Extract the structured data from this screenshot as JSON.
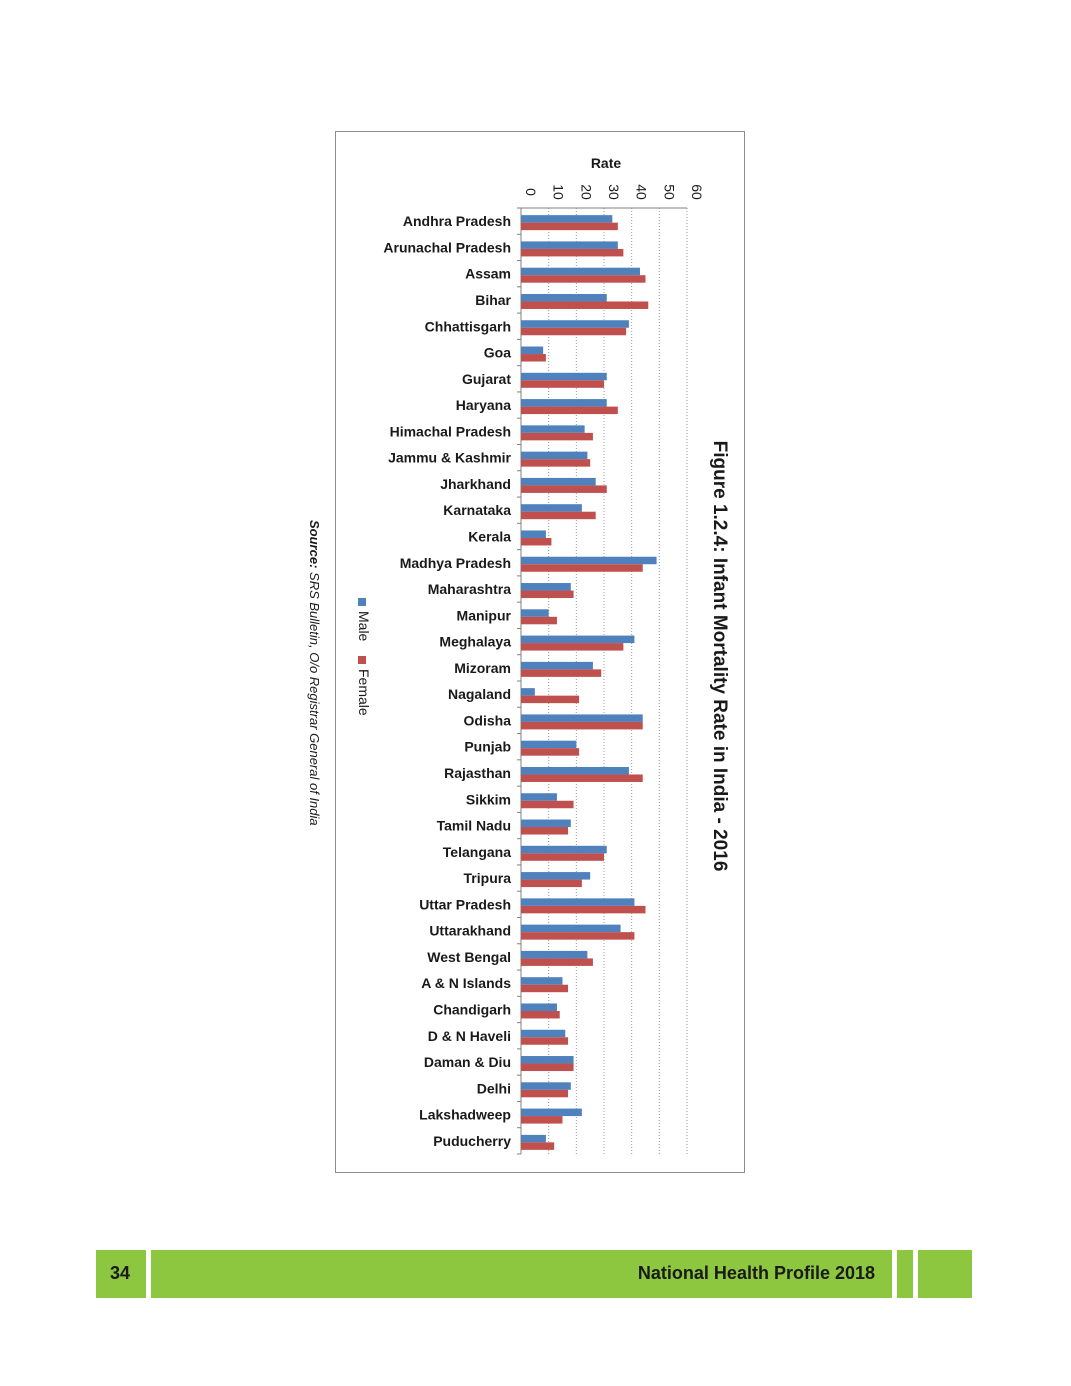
{
  "chart_data": {
    "type": "bar",
    "orientation": "horizontal",
    "title": "Figure 1.2.4: Infant Mortality Rate in India - 2016",
    "xlabel": "Rate",
    "ylabel": "",
    "xlim": [
      0,
      60
    ],
    "ticks": [
      0,
      10,
      20,
      30,
      40,
      50,
      60
    ],
    "grid": true,
    "legend_position": "bottom",
    "categories": [
      "Andhra Pradesh",
      "Arunachal Pradesh",
      "Assam",
      "Bihar",
      "Chhattisgarh",
      "Goa",
      "Gujarat",
      "Haryana",
      "Himachal Pradesh",
      "Jammu & Kashmir",
      "Jharkhand",
      "Karnataka",
      "Kerala",
      "Madhya Pradesh",
      "Maharashtra",
      "Manipur",
      "Meghalaya",
      "Mizoram",
      "Nagaland",
      "Odisha",
      "Punjab",
      "Rajasthan",
      "Sikkim",
      "Tamil Nadu",
      "Telangana",
      "Tripura",
      "Uttar Pradesh",
      "Uttarakhand",
      "West Bengal",
      "A & N Islands",
      "Chandigarh",
      "D & N Haveli",
      "Daman & Diu",
      "Delhi",
      "Lakshadweep",
      "Puducherry"
    ],
    "series": [
      {
        "name": "Male",
        "color": "#4f81bd",
        "values": [
          33,
          35,
          43,
          31,
          39,
          8,
          31,
          31,
          23,
          24,
          27,
          22,
          9,
          49,
          18,
          10,
          41,
          26,
          5,
          44,
          20,
          39,
          13,
          18,
          31,
          25,
          41,
          36,
          24,
          15,
          13,
          16,
          19,
          18,
          22,
          9
        ]
      },
      {
        "name": "Female",
        "color": "#c0504d",
        "values": [
          35,
          37,
          45,
          46,
          38,
          9,
          30,
          35,
          26,
          25,
          31,
          27,
          11,
          44,
          19,
          13,
          37,
          29,
          21,
          44,
          21,
          44,
          19,
          17,
          30,
          22,
          45,
          41,
          26,
          17,
          14,
          17,
          19,
          17,
          15,
          12
        ]
      }
    ]
  },
  "source": {
    "label": "Source:",
    "text": " SRS Bulletin, O/o Registrar General of India"
  },
  "footer": {
    "page_number": "34",
    "title": "National Health Profile 2018",
    "color": "#8dc63f"
  }
}
